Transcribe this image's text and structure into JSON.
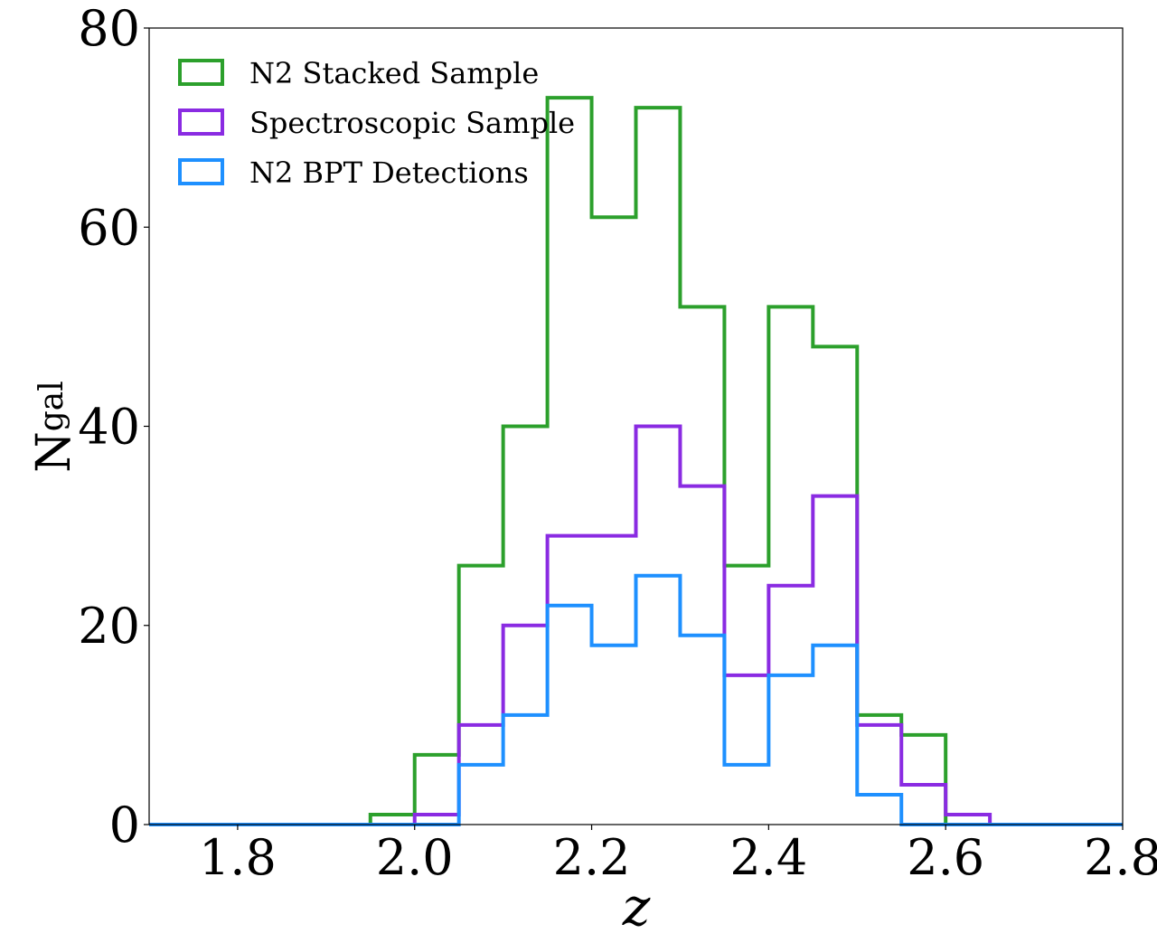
{
  "chart_data": {
    "type": "histogram",
    "title": "",
    "xlabel": "z",
    "ylabel": {
      "base": "N",
      "sub": "gal"
    },
    "xlim": [
      1.7,
      2.8
    ],
    "ylim": [
      0,
      80
    ],
    "xticks": [
      "1.8",
      "2.0",
      "2.2",
      "2.4",
      "2.6",
      "2.8"
    ],
    "xtick_values": [
      1.8,
      2.0,
      2.2,
      2.4,
      2.6,
      2.8
    ],
    "yticks": [
      "0",
      "20",
      "40",
      "60",
      "80"
    ],
    "ytick_values": [
      0,
      20,
      40,
      60,
      80
    ],
    "grid": false,
    "legend_position": "top-left",
    "bin_edges": [
      1.7,
      1.75,
      1.8,
      1.85,
      1.9,
      1.95,
      2.0,
      2.05,
      2.1,
      2.15,
      2.2,
      2.25,
      2.3,
      2.35,
      2.4,
      2.45,
      2.5,
      2.55,
      2.6,
      2.65,
      2.7,
      2.75,
      2.8
    ],
    "series": [
      {
        "name": "N2 Stacked Sample",
        "color": "#2ca02c",
        "counts": [
          0,
          0,
          0,
          0,
          0,
          1,
          7,
          26,
          40,
          73,
          61,
          72,
          52,
          26,
          52,
          48,
          11,
          9,
          0,
          0,
          0,
          0
        ]
      },
      {
        "name": "Spectroscopic Sample",
        "color": "#8a2be2",
        "counts": [
          0,
          0,
          0,
          0,
          0,
          0,
          1,
          10,
          20,
          29,
          29,
          40,
          34,
          15,
          24,
          33,
          10,
          4,
          1,
          0,
          0,
          0
        ]
      },
      {
        "name": "N2 BPT Detections",
        "color": "#1e90ff",
        "counts": [
          0,
          0,
          0,
          0,
          0,
          0,
          0,
          6,
          11,
          22,
          18,
          25,
          19,
          6,
          15,
          18,
          3,
          0,
          0,
          0,
          0,
          0
        ]
      }
    ]
  }
}
